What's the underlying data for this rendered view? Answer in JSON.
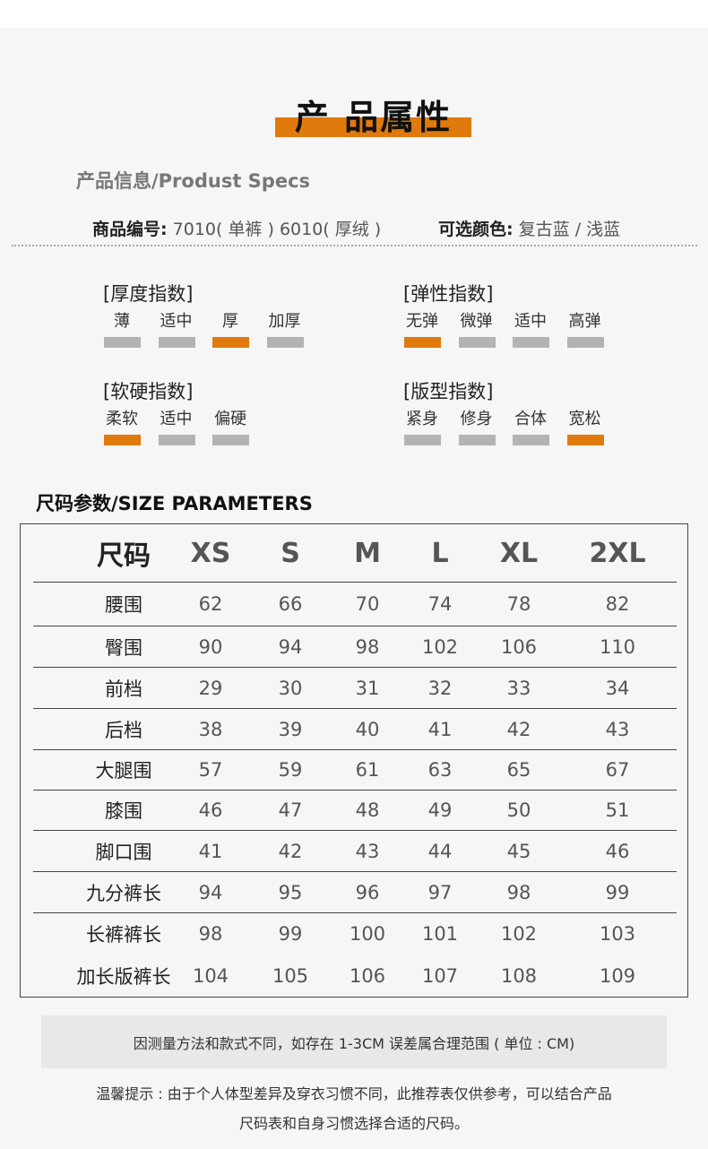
{
  "header": {
    "title": "产 品属性",
    "subtitle": "产品信息/Produst Specs"
  },
  "info": {
    "item_no_label": "商品编号:",
    "item_no_value": "7010( 单裤 ) 6010( 厚绒 )",
    "color_label": "可选颜色:",
    "color_value": "复古蓝 / 浅蓝"
  },
  "accent_color": "#e07a0c",
  "indices": [
    {
      "label": "[厚度指数]",
      "options": [
        "薄",
        "适中",
        "厚",
        "加厚"
      ],
      "selected": 2
    },
    {
      "label": "[弹性指数]",
      "options": [
        "无弹",
        "微弹",
        "适中",
        "高弹"
      ],
      "selected": 0
    },
    {
      "label": "[软硬指数]",
      "options": [
        "柔软",
        "适中",
        "偏硬"
      ],
      "selected": 0
    },
    {
      "label": "[版型指数]",
      "options": [
        "紧身",
        "修身",
        "合体",
        "宽松"
      ],
      "selected": 3
    }
  ],
  "size_table": {
    "title": "尺码参数/SIZE PARAMETERS",
    "headers": [
      "尺码",
      "XS",
      "S",
      "M",
      "L",
      "XL",
      "2XL"
    ],
    "rows": [
      [
        "腰围",
        "62",
        "66",
        "70",
        "74",
        "78",
        "82"
      ],
      [
        "臀围",
        "90",
        "94",
        "98",
        "102",
        "106",
        "110"
      ],
      [
        "前档",
        "29",
        "30",
        "31",
        "32",
        "33",
        "34"
      ],
      [
        "后档",
        "38",
        "39",
        "40",
        "41",
        "42",
        "43"
      ],
      [
        "大腿围",
        "57",
        "59",
        "61",
        "63",
        "65",
        "67"
      ],
      [
        "膝围",
        "46",
        "47",
        "48",
        "49",
        "50",
        "51"
      ],
      [
        "脚口围",
        "41",
        "42",
        "43",
        "44",
        "45",
        "46"
      ],
      [
        "九分裤长",
        "94",
        "95",
        "96",
        "97",
        "98",
        "99"
      ],
      [
        "长裤裤长",
        "98",
        "99",
        "100",
        "101",
        "102",
        "103"
      ],
      [
        "加长版裤长",
        "104",
        "105",
        "106",
        "107",
        "108",
        "109"
      ]
    ]
  },
  "note": "因测量方法和款式不同，如存在 1-3CM 误差属合理范围 ( 单位 : CM)",
  "tip": [
    "温馨提示 : 由于个人体型差异及穿衣习惯不同，此推荐表仅供参考，可以结合产品",
    "尺码表和自身习惯选择合适的尺码。"
  ]
}
